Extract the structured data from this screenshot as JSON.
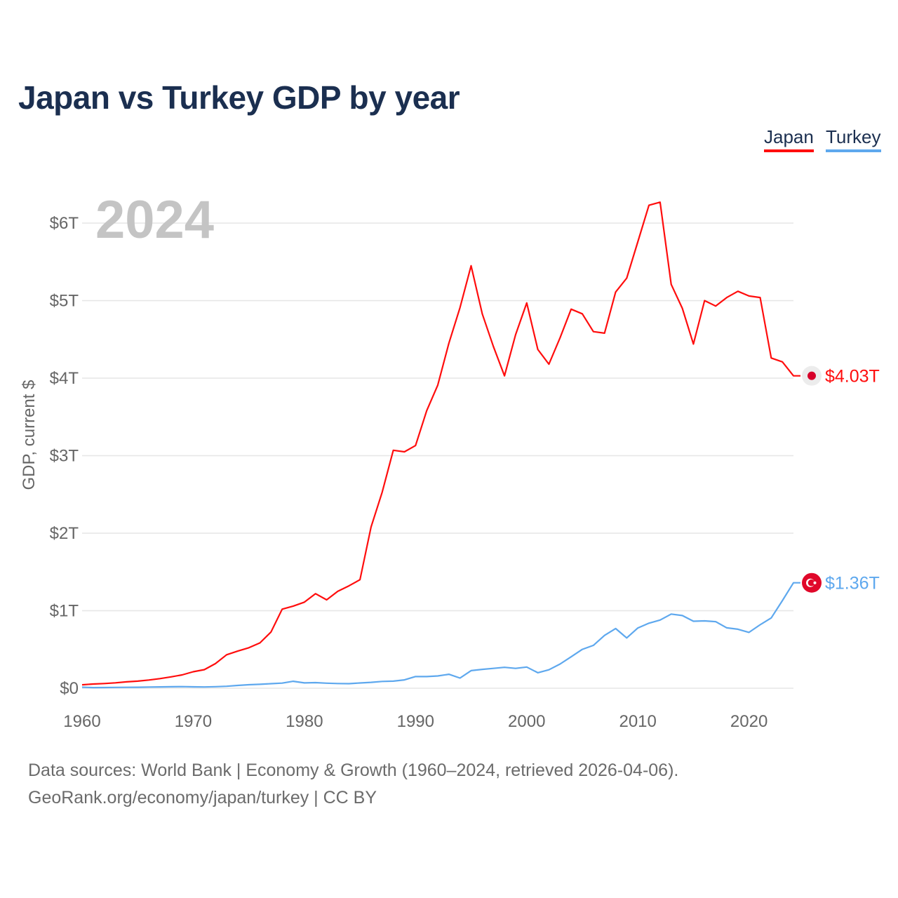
{
  "title": "Japan vs Turkey GDP by year",
  "year_label": "2024",
  "sources_line1": "Data sources: World Bank | Economy & Growth (1960–2024, retrieved 2026-04-06).",
  "sources_line2": "GeoRank.org/economy/japan/turkey | CC BY",
  "chart_data": {
    "type": "line",
    "title": "Japan vs Turkey GDP by year",
    "xlabel": "",
    "ylabel": "GDP, current $",
    "xlim": [
      1960,
      2024
    ],
    "ylim": [
      0,
      6
    ],
    "grid": true,
    "legend_placement": "top-right",
    "x_ticks": [
      1960,
      1970,
      1980,
      1990,
      2000,
      2010,
      2020
    ],
    "x_tick_labels": [
      "1960",
      "1970",
      "1980",
      "1990",
      "2000",
      "2010",
      "2020"
    ],
    "y_ticks": [
      0,
      1,
      2,
      3,
      4,
      5,
      6
    ],
    "y_tick_labels": [
      "$0",
      "$1T",
      "$2T",
      "$3T",
      "$4T",
      "$5T",
      "$6T"
    ],
    "x": [
      1960,
      1961,
      1962,
      1963,
      1964,
      1965,
      1966,
      1967,
      1968,
      1969,
      1970,
      1971,
      1972,
      1973,
      1974,
      1975,
      1976,
      1977,
      1978,
      1979,
      1980,
      1981,
      1982,
      1983,
      1984,
      1985,
      1986,
      1987,
      1988,
      1989,
      1990,
      1991,
      1992,
      1993,
      1994,
      1995,
      1996,
      1997,
      1998,
      1999,
      2000,
      2001,
      2002,
      2003,
      2004,
      2005,
      2006,
      2007,
      2008,
      2009,
      2010,
      2011,
      2012,
      2013,
      2014,
      2015,
      2016,
      2017,
      2018,
      2019,
      2020,
      2021,
      2022,
      2023,
      2024
    ],
    "series": [
      {
        "name": "Japan",
        "color": "#ff0d0d",
        "end_label": "$4.03T",
        "flag": "japan-flag",
        "values": [
          0.044,
          0.054,
          0.061,
          0.07,
          0.082,
          0.091,
          0.106,
          0.124,
          0.147,
          0.172,
          0.213,
          0.24,
          0.318,
          0.432,
          0.479,
          0.522,
          0.585,
          0.726,
          1.02,
          1.06,
          1.11,
          1.22,
          1.14,
          1.25,
          1.32,
          1.4,
          2.08,
          2.53,
          3.07,
          3.05,
          3.13,
          3.58,
          3.91,
          4.45,
          4.91,
          5.45,
          4.83,
          4.41,
          4.03,
          4.56,
          4.97,
          4.37,
          4.18,
          4.52,
          4.89,
          4.83,
          4.6,
          4.58,
          5.11,
          5.29,
          5.76,
          6.23,
          6.27,
          5.21,
          4.9,
          4.44,
          5.0,
          4.93,
          5.04,
          5.12,
          5.06,
          5.04,
          4.26,
          4.21,
          4.03
        ]
      },
      {
        "name": "Turkey",
        "color": "#5ea8ee",
        "end_label": "$1.36T",
        "flag": "turkey-flag",
        "values": [
          0.014,
          0.008,
          0.009,
          0.011,
          0.012,
          0.013,
          0.015,
          0.017,
          0.019,
          0.021,
          0.018,
          0.016,
          0.02,
          0.025,
          0.036,
          0.045,
          0.051,
          0.059,
          0.066,
          0.09,
          0.069,
          0.072,
          0.065,
          0.061,
          0.059,
          0.068,
          0.076,
          0.088,
          0.091,
          0.108,
          0.151,
          0.15,
          0.158,
          0.18,
          0.131,
          0.227,
          0.243,
          0.256,
          0.27,
          0.256,
          0.273,
          0.2,
          0.238,
          0.312,
          0.405,
          0.501,
          0.553,
          0.681,
          0.77,
          0.649,
          0.777,
          0.839,
          0.88,
          0.957,
          0.938,
          0.864,
          0.869,
          0.859,
          0.779,
          0.761,
          0.72,
          0.819,
          0.907,
          1.13,
          1.36
        ]
      }
    ]
  }
}
